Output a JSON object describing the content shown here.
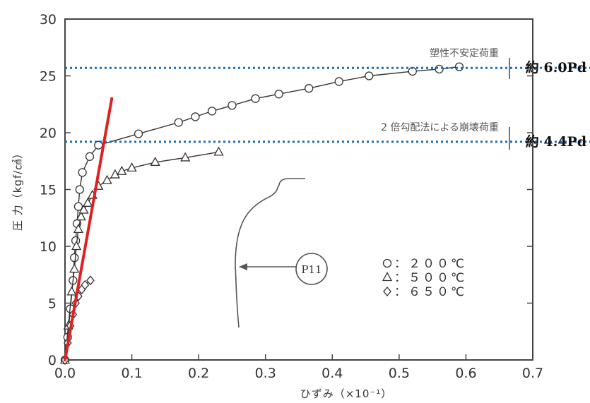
{
  "chart_data": {
    "type": "line",
    "xlabel": "ひずみ（×10⁻¹）",
    "ylabel": "圧 力（kgf/㎠）",
    "xlim": [
      0,
      0.7
    ],
    "ylim": [
      0,
      30
    ],
    "x_ticks": [
      "0.0",
      "0.1",
      "0.2",
      "0.3",
      "0.4",
      "0.5",
      "0.6",
      "0.7"
    ],
    "y_ticks": [
      "0",
      "5",
      "10",
      "15",
      "20",
      "25",
      "30"
    ],
    "grid": false,
    "series": [
      {
        "name": "200℃",
        "marker": "circle",
        "x": [
          0.0,
          0.004,
          0.008,
          0.012,
          0.014,
          0.016,
          0.018,
          0.02,
          0.022,
          0.026,
          0.037,
          0.05,
          0.11,
          0.17,
          0.195,
          0.22,
          0.25,
          0.285,
          0.32,
          0.365,
          0.41,
          0.455,
          0.52,
          0.56,
          0.59
        ],
        "y": [
          0.0,
          2.0,
          4.5,
          7.0,
          9.0,
          10.5,
          12.0,
          13.5,
          15.0,
          16.5,
          17.9,
          18.9,
          19.9,
          20.9,
          21.4,
          21.9,
          22.4,
          23.0,
          23.4,
          23.9,
          24.5,
          25.0,
          25.4,
          25.6,
          25.8
        ]
      },
      {
        "name": "500℃",
        "marker": "triangle",
        "x": [
          0.0,
          0.005,
          0.01,
          0.014,
          0.017,
          0.02,
          0.024,
          0.028,
          0.034,
          0.041,
          0.05,
          0.063,
          0.075,
          0.085,
          0.1,
          0.135,
          0.18,
          0.23
        ],
        "y": [
          0.0,
          3.0,
          6.0,
          8.0,
          10.0,
          11.5,
          12.6,
          13.2,
          13.8,
          14.5,
          15.3,
          15.8,
          16.3,
          16.6,
          16.9,
          17.4,
          17.8,
          18.3
        ]
      },
      {
        "name": "650℃",
        "marker": "diamond",
        "x": [
          0.0,
          0.004,
          0.008,
          0.012,
          0.016,
          0.02,
          0.025,
          0.03,
          0.038
        ],
        "y": [
          0.0,
          1.5,
          3.0,
          4.0,
          5.0,
          5.6,
          6.2,
          6.6,
          7.0
        ]
      }
    ],
    "reference_lines": [
      {
        "y": 25.7,
        "label": "塑性不安定荷重",
        "value_label": "約 6.0Pd",
        "color": "#1a6fb5"
      },
      {
        "y": 19.2,
        "label": "2 倍勾配法による崩壊荷重",
        "value_label": "約 4.4Pd",
        "color": "#1a6fb5"
      }
    ],
    "slope_line": {
      "x": [
        0.0,
        0.07
      ],
      "y": [
        0.0,
        23.0
      ],
      "color": "#e02020"
    },
    "inset": {
      "label": "P11"
    },
    "legend": {
      "placement": "bottom-right",
      "entries": [
        {
          "marker": "circle",
          "text": "：２００℃"
        },
        {
          "marker": "triangle",
          "text": "：５００℃"
        },
        {
          "marker": "diamond",
          "text": "：６５０℃"
        }
      ]
    }
  }
}
